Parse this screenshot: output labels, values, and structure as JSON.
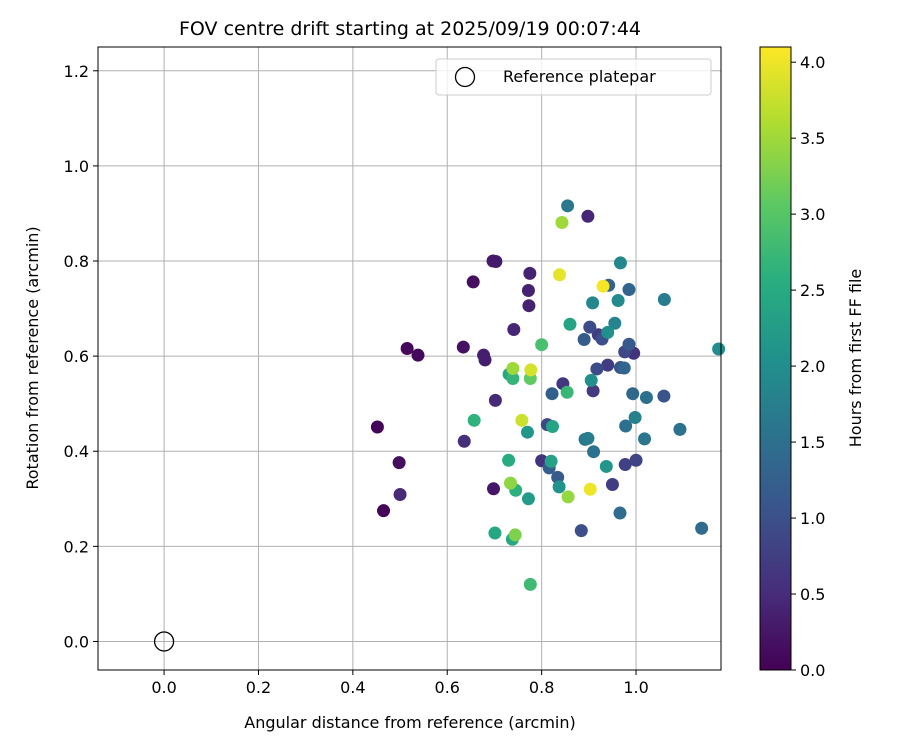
{
  "chart_data": {
    "type": "scatter",
    "title": "FOV centre drift starting at 2025/09/19 00:07:44",
    "xlabel": "Angular distance from reference (arcmin)",
    "ylabel": "Rotation from reference (arcmin)",
    "xlim": [
      -0.14,
      1.18
    ],
    "ylim": [
      -0.06,
      1.25
    ],
    "x_ticks": [
      "0.0",
      "0.2",
      "0.4",
      "0.6",
      "0.8",
      "1.0"
    ],
    "x_tick_values": [
      0.0,
      0.2,
      0.4,
      0.6,
      0.8,
      1.0
    ],
    "y_ticks": [
      "0.0",
      "0.2",
      "0.4",
      "0.6",
      "0.8",
      "1.0",
      "1.2"
    ],
    "y_tick_values": [
      0.0,
      0.2,
      0.4,
      0.6,
      0.8,
      1.0,
      1.2
    ],
    "grid": true,
    "legend": {
      "placement": "top-right",
      "entries": [
        {
          "label": "Reference platepar",
          "marker": "hollow-circle",
          "x": 0.0,
          "y": 0.0
        }
      ]
    },
    "colorbar": {
      "label": "Hours from first FF file",
      "colormap": "viridis",
      "range": [
        0.0,
        4.1
      ],
      "ticks": [
        "0.0",
        "0.5",
        "1.0",
        "1.5",
        "2.0",
        "2.5",
        "3.0",
        "3.5",
        "4.0"
      ],
      "tick_values": [
        0.0,
        0.5,
        1.0,
        1.5,
        2.0,
        2.5,
        3.0,
        3.5,
        4.0
      ]
    },
    "series": [
      {
        "points": [
          [
            0.465,
            0.275,
            0.05
          ],
          [
            0.452,
            0.451,
            0.05
          ],
          [
            0.515,
            0.616,
            0.1
          ],
          [
            0.538,
            0.602,
            0.1
          ],
          [
            0.498,
            0.376,
            0.15
          ],
          [
            0.655,
            0.756,
            0.15
          ],
          [
            0.634,
            0.619,
            0.2
          ],
          [
            0.698,
            0.321,
            0.25
          ],
          [
            0.697,
            0.8,
            0.3
          ],
          [
            0.703,
            0.799,
            0.3
          ],
          [
            0.677,
            0.602,
            0.35
          ],
          [
            0.68,
            0.592,
            0.35
          ],
          [
            0.775,
            0.774,
            0.4
          ],
          [
            0.772,
            0.738,
            0.4
          ],
          [
            0.773,
            0.706,
            0.4
          ],
          [
            0.741,
            0.656,
            0.45
          ],
          [
            0.898,
            0.894,
            0.45
          ],
          [
            0.5,
            0.309,
            0.5
          ],
          [
            0.702,
            0.507,
            0.5
          ],
          [
            0.636,
            0.421,
            0.55
          ],
          [
            0.8,
            0.38,
            0.6
          ],
          [
            0.845,
            0.542,
            0.65
          ],
          [
            0.995,
            0.606,
            0.6
          ],
          [
            0.909,
            0.527,
            0.7
          ],
          [
            0.92,
            0.645,
            0.7
          ],
          [
            0.94,
            0.581,
            0.75
          ],
          [
            0.95,
            0.33,
            0.75
          ],
          [
            0.977,
            0.372,
            0.8
          ],
          [
            1.0,
            0.381,
            0.85
          ],
          [
            0.976,
            0.609,
            0.9
          ],
          [
            0.812,
            0.456,
            0.9
          ],
          [
            0.902,
            0.661,
            0.95
          ],
          [
            0.917,
            0.573,
            0.95
          ],
          [
            0.928,
            0.636,
            1.0
          ],
          [
            0.884,
            0.233,
            1.0
          ],
          [
            1.059,
            0.516,
            1.05
          ],
          [
            0.967,
            0.576,
            1.1
          ],
          [
            0.985,
            0.625,
            1.15
          ],
          [
            0.89,
            0.635,
            1.2
          ],
          [
            0.834,
            0.345,
            1.2
          ],
          [
            0.816,
            0.365,
            1.25
          ],
          [
            0.822,
            0.521,
            1.25
          ],
          [
            0.942,
            0.749,
            1.3
          ],
          [
            0.985,
            0.74,
            1.35
          ],
          [
            0.975,
            0.575,
            1.35
          ],
          [
            0.993,
            0.521,
            1.4
          ],
          [
            0.966,
            0.27,
            1.45
          ],
          [
            1.139,
            0.238,
            1.45
          ],
          [
            0.978,
            0.453,
            1.5
          ],
          [
            1.022,
            0.513,
            1.5
          ],
          [
            1.093,
            0.446,
            1.55
          ],
          [
            0.91,
            0.399,
            1.55
          ],
          [
            0.892,
            0.425,
            1.6
          ],
          [
            1.018,
            0.426,
            1.6
          ],
          [
            0.855,
            0.916,
            1.65
          ],
          [
            1.06,
            0.719,
            1.7
          ],
          [
            0.898,
            0.427,
            1.7
          ],
          [
            0.998,
            0.471,
            1.8
          ],
          [
            0.955,
            0.669,
            1.85
          ],
          [
            0.967,
            0.796,
            1.9
          ],
          [
            0.908,
            0.712,
            1.9
          ],
          [
            0.962,
            0.717,
            1.95
          ],
          [
            1.175,
            0.615,
            2.0
          ],
          [
            0.94,
            0.65,
            2.05
          ],
          [
            0.905,
            0.549,
            2.05
          ],
          [
            0.837,
            0.325,
            2.1
          ],
          [
            0.937,
            0.368,
            2.15
          ],
          [
            0.77,
            0.44,
            2.2
          ],
          [
            0.772,
            0.3,
            2.25
          ],
          [
            0.82,
            0.379,
            2.35
          ],
          [
            0.823,
            0.452,
            2.4
          ],
          [
            0.731,
            0.562,
            2.45
          ],
          [
            0.86,
            0.667,
            2.4
          ],
          [
            0.701,
            0.228,
            2.45
          ],
          [
            0.738,
            0.215,
            2.5
          ],
          [
            0.73,
            0.381,
            2.55
          ],
          [
            0.745,
            0.318,
            2.6
          ],
          [
            0.657,
            0.465,
            2.65
          ],
          [
            0.739,
            0.553,
            2.7
          ],
          [
            0.854,
            0.524,
            2.75
          ],
          [
            0.776,
            0.12,
            2.8
          ],
          [
            0.8,
            0.624,
            2.9
          ],
          [
            0.776,
            0.553,
            3.1
          ],
          [
            0.744,
            0.224,
            3.3
          ],
          [
            0.734,
            0.333,
            3.4
          ],
          [
            0.856,
            0.304,
            3.45
          ],
          [
            0.739,
            0.574,
            3.5
          ],
          [
            0.843,
            0.881,
            3.5
          ],
          [
            0.758,
            0.465,
            3.8
          ],
          [
            0.777,
            0.571,
            3.85
          ],
          [
            0.838,
            0.771,
            3.95
          ],
          [
            0.903,
            0.32,
            4.0
          ],
          [
            0.93,
            0.747,
            4.05
          ]
        ]
      }
    ]
  }
}
